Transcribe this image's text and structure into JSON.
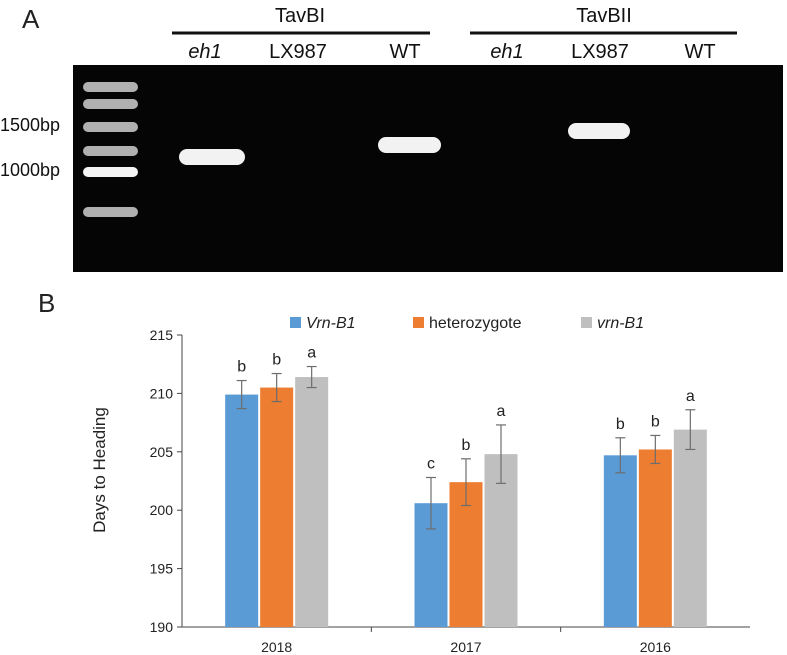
{
  "panel_a": {
    "label": "A",
    "group_labels": [
      {
        "text": "TavBI",
        "lanes": [
          "eh1",
          "LX987",
          "WT"
        ]
      },
      {
        "text": "TavBII",
        "lanes": [
          "eh1",
          "LX987",
          "WT"
        ]
      }
    ],
    "lane_italic": [
      true,
      false,
      false
    ],
    "markers": [
      "1500bp",
      "1000bp"
    ],
    "band_present": [
      [
        true,
        false,
        true
      ],
      [
        false,
        true,
        false
      ]
    ]
  },
  "chart_data": {
    "type": "bar",
    "panel_label": "B",
    "title": "",
    "xlabel": "",
    "ylabel": "Days to Heading",
    "categories": [
      "2018",
      "2017",
      "2016"
    ],
    "ylim": [
      190,
      215
    ],
    "yticks": [
      190,
      195,
      200,
      205,
      210,
      215
    ],
    "grid": false,
    "legend_position": "top",
    "series": [
      {
        "name": "Vrn-B1",
        "italic": true,
        "color": "#5b9bd5",
        "values": [
          209.9,
          200.6,
          204.7
        ],
        "errors": [
          1.2,
          2.2,
          1.5
        ],
        "letters": [
          "b",
          "c",
          "b"
        ]
      },
      {
        "name": "heterozygote",
        "italic": false,
        "color": "#ed7d31",
        "values": [
          210.5,
          202.4,
          205.2
        ],
        "errors": [
          1.2,
          2.0,
          1.2
        ],
        "letters": [
          "b",
          "b",
          "b"
        ]
      },
      {
        "name": "vrn-B1",
        "italic": true,
        "color": "#bfbfbf",
        "values": [
          211.4,
          204.8,
          206.9
        ],
        "errors": [
          0.9,
          2.5,
          1.7
        ],
        "letters": [
          "a",
          "a",
          "a"
        ]
      }
    ]
  }
}
